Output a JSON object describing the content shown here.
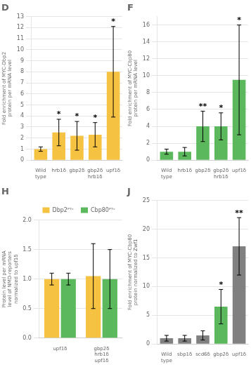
{
  "chart_data": [
    {
      "type": "bar",
      "title": "D",
      "categories": [
        "Wild\ntype",
        "hrb1δ",
        "gbp2δ",
        "gbp2δ\nhrb1δ",
        "upf1δ"
      ],
      "values": [
        1.0,
        2.5,
        2.2,
        2.3,
        8.0
      ],
      "errors": [
        0.2,
        1.2,
        1.3,
        1.1,
        4.1
      ],
      "color": "#F5C242",
      "ylabel": "Fold enrichment of MYC-Dbp2\nprotein per mRNA level",
      "ylim": [
        0,
        13
      ],
      "yticks": [
        0,
        1,
        2,
        3,
        4,
        5,
        6,
        7,
        8,
        9,
        10,
        11,
        12,
        13
      ],
      "grid": true,
      "annotations": [
        null,
        "*",
        "*",
        "*",
        "*"
      ]
    },
    {
      "type": "bar",
      "title": "F",
      "categories": [
        "Wild\ntype",
        "hrb1δ",
        "gbp2δ",
        "gbp2δ\nhrb1δ",
        "upf1δ"
      ],
      "values": [
        1.0,
        1.0,
        4.0,
        4.0,
        9.5
      ],
      "errors": [
        0.3,
        0.5,
        1.8,
        1.6,
        6.5
      ],
      "color": "#5CB85C",
      "ylabel": "Fold enrichment of MYC-Cbp80\nprotein per mRNA level",
      "ylim": [
        0,
        17
      ],
      "yticks": [
        0,
        2,
        4,
        6,
        8,
        10,
        12,
        14,
        16
      ],
      "grid": true,
      "annotations": [
        null,
        null,
        "**",
        "*",
        "*"
      ]
    },
    {
      "type": "bar",
      "title": "H",
      "categories": [
        "upf1δ",
        "gbp2δ\nhrb1δ\nupf1δ"
      ],
      "series": [
        {
          "name": "Dbp2ᴾᵀᶜ",
          "color": "#F5C242",
          "values": [
            1.0,
            1.05
          ],
          "errors": [
            0.1,
            0.55
          ]
        },
        {
          "name": "Cbp80ᴾᵀᶜ",
          "color": "#5CB85C",
          "values": [
            1.0,
            1.0
          ],
          "errors": [
            0.1,
            0.5
          ]
        }
      ],
      "ylabel": "Protein level per mRNA\nlevel of NMD-reporters\nnormalized to upf1δ",
      "ylim": [
        0,
        2
      ],
      "yticks": [
        {
          "value": 0,
          "label": "0.0"
        },
        {
          "value": 0.5,
          "label": "0.5"
        },
        {
          "value": 1.0,
          "label": "1.0"
        },
        {
          "value": 1.5,
          "label": "1.5"
        },
        {
          "value": 2.0,
          "label": "2.0"
        }
      ],
      "grid": true,
      "legend": "upper right"
    },
    {
      "type": "bar",
      "title": "J",
      "categories": [
        "Wild\ntype",
        "sbp1δ",
        "scd6δ",
        "gbp2δ",
        "upf1δ"
      ],
      "values": [
        1.0,
        1.0,
        1.5,
        6.5,
        17.0
      ],
      "errors": [
        0.5,
        0.5,
        0.8,
        3.0,
        5.0
      ],
      "colors": [
        "#808080",
        "#808080",
        "#808080",
        "#5CB85C",
        "#808080"
      ],
      "ylabel": "Fold enrichment of MYC-Cbp80\nprotein normalized to Zwf1",
      "ylim": [
        0,
        25
      ],
      "yticks": [
        0,
        5,
        10,
        15,
        20,
        25
      ],
      "grid": true,
      "annotations": [
        null,
        null,
        null,
        "*",
        "**"
      ]
    }
  ]
}
